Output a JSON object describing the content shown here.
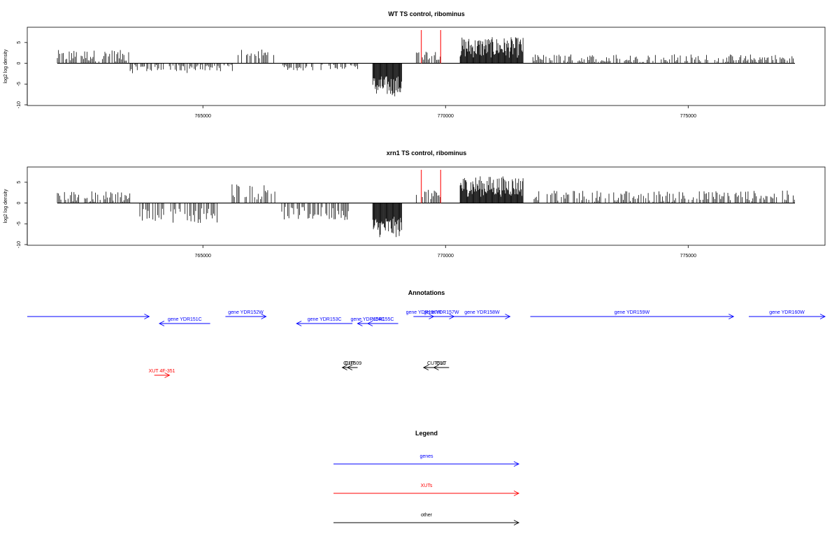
{
  "colors": {
    "genes": "#0000ff",
    "xuts": "#ff0000",
    "other": "#000000",
    "marker": "#ff3333",
    "bars": "#000000"
  },
  "chart_data": [
    {
      "type": "bar",
      "title": "WT TS control, ribominus",
      "ylabel": "log2 log density",
      "xlim": [
        761800,
        777500
      ],
      "ylim": [
        -10,
        8
      ],
      "x_ticks": [
        765000,
        770000,
        775000
      ],
      "y_ticks": [
        -10,
        -5,
        0,
        5
      ],
      "red_markers": [
        769500,
        769900
      ],
      "regions": [
        {
          "x0": 762000,
          "x1": 763500,
          "mean": 1.8,
          "spread": 1.4
        },
        {
          "x0": 763500,
          "x1": 765700,
          "mean": -1.2,
          "spread": 1.2
        },
        {
          "x0": 765700,
          "x1": 766500,
          "mean": 2.0,
          "spread": 1.5
        },
        {
          "x0": 766600,
          "x1": 767500,
          "mean": -1.0,
          "spread": 0.8
        },
        {
          "x0": 767600,
          "x1": 768200,
          "mean": -0.8,
          "spread": 0.6
        },
        {
          "x0": 768500,
          "x1": 769100,
          "mean": -5.5,
          "spread": 2.5
        },
        {
          "x0": 769400,
          "x1": 769900,
          "mean": 2.0,
          "spread": 1.2
        },
        {
          "x0": 770300,
          "x1": 771600,
          "mean": 3.8,
          "spread": 2.5
        },
        {
          "x0": 771800,
          "x1": 777200,
          "mean": 1.0,
          "spread": 1.2
        }
      ]
    },
    {
      "type": "bar",
      "title": "xrn1 TS control, ribominus",
      "ylabel": "log2 log density",
      "xlim": [
        761800,
        777500
      ],
      "ylim": [
        -10,
        8
      ],
      "x_ticks": [
        765000,
        770000,
        775000
      ],
      "y_ticks": [
        -10,
        -5,
        0,
        5
      ],
      "red_markers": [
        769500,
        769900
      ],
      "regions": [
        {
          "x0": 762000,
          "x1": 763500,
          "mean": 1.5,
          "spread": 1.4
        },
        {
          "x0": 763700,
          "x1": 765300,
          "mean": -3.0,
          "spread": 1.8
        },
        {
          "x0": 765600,
          "x1": 766500,
          "mean": 2.8,
          "spread": 2.0
        },
        {
          "x0": 766600,
          "x1": 768000,
          "mean": -2.5,
          "spread": 1.6
        },
        {
          "x0": 768500,
          "x1": 769100,
          "mean": -5.8,
          "spread": 2.5
        },
        {
          "x0": 769400,
          "x1": 769900,
          "mean": 2.0,
          "spread": 1.2
        },
        {
          "x0": 770300,
          "x1": 771600,
          "mean": 4.0,
          "spread": 2.5
        },
        {
          "x0": 771800,
          "x1": 777200,
          "mean": 1.6,
          "spread": 1.4
        }
      ]
    }
  ],
  "annotations": {
    "title": "Annotations",
    "items": [
      {
        "label": "",
        "type": "genes",
        "x0": 761800,
        "x1": 764200,
        "row": 0,
        "dir": "right"
      },
      {
        "label": "gene YDR151C",
        "type": "genes",
        "x0": 764400,
        "x1": 765400,
        "row": 1,
        "dir": "left"
      },
      {
        "label": "gene YDR152W",
        "type": "genes",
        "x0": 765700,
        "x1": 766500,
        "row": 0,
        "dir": "right"
      },
      {
        "label": "gene YDR153C",
        "type": "genes",
        "x0": 767100,
        "x1": 768200,
        "row": 1,
        "dir": "left"
      },
      {
        "label": "gene YDR154C",
        "type": "genes",
        "x0": 768300,
        "x1": 768700,
        "row": 1,
        "dir": "left"
      },
      {
        "label": "YDR155C",
        "type": "genes",
        "x0": 768500,
        "x1": 769100,
        "row": 1,
        "dir": "left"
      },
      {
        "label": "gene YDR156W",
        "type": "genes",
        "x0": 769400,
        "x1": 769800,
        "row": 0,
        "dir": "right"
      },
      {
        "label": "gene YDR157W",
        "type": "genes",
        "x0": 769700,
        "x1": 770200,
        "row": 0,
        "dir": "right"
      },
      {
        "label": "gene YDR158W",
        "type": "genes",
        "x0": 770200,
        "x1": 771300,
        "row": 0,
        "dir": "right"
      },
      {
        "label": "gene YDR159W",
        "type": "genes",
        "x0": 771700,
        "x1": 775700,
        "row": 0,
        "dir": "right"
      },
      {
        "label": "gene YDR160W",
        "type": "genes",
        "x0": 776000,
        "x1": 777500,
        "row": 0,
        "dir": "right"
      },
      {
        "label": "CUT",
        "type": "other",
        "x0": 768000,
        "x1": 768300,
        "row": 2,
        "dir": "left"
      },
      {
        "label": "CUT509",
        "type": "other",
        "x0": 768100,
        "x1": 768300,
        "row": 2,
        "dir": "left"
      },
      {
        "label": "CUT",
        "type": "other",
        "x0": 769800,
        "x1": 770100,
        "row": 2,
        "dir": "left"
      },
      {
        "label": "CUT510",
        "type": "other",
        "x0": 769600,
        "x1": 770100,
        "row": 2,
        "dir": "left"
      },
      {
        "label": "XUT 4F-351",
        "type": "xuts",
        "x0": 764300,
        "x1": 764600,
        "row": 3,
        "dir": "right"
      }
    ]
  },
  "legend": {
    "title": "Legend",
    "items": [
      {
        "label": "genes",
        "type": "genes"
      },
      {
        "label": "XUTs",
        "type": "xuts"
      },
      {
        "label": "other",
        "type": "other"
      }
    ]
  }
}
